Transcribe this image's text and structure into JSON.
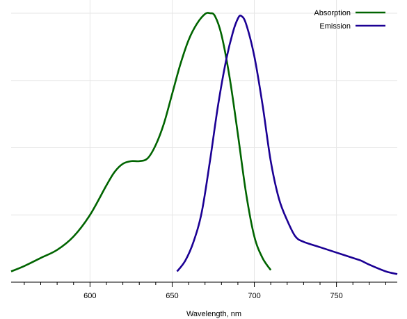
{
  "chart_data": {
    "type": "line",
    "title": "",
    "xlabel": "Wavelength, nm",
    "ylabel": "",
    "xlim": [
      552,
      787
    ],
    "ylim": [
      0,
      1.0
    ],
    "x_ticks": [
      600,
      650,
      700,
      750
    ],
    "x_tick_labels": [
      "600",
      "650",
      "700",
      "750"
    ],
    "grid": "vertical and horizontal",
    "legend_position": "top-right",
    "series": [
      {
        "name": "Absorption",
        "color": "#006400",
        "points": [
          [
            552,
            0.04
          ],
          [
            560,
            0.06
          ],
          [
            570,
            0.09
          ],
          [
            580,
            0.12
          ],
          [
            590,
            0.17
          ],
          [
            600,
            0.25
          ],
          [
            610,
            0.36
          ],
          [
            615,
            0.41
          ],
          [
            620,
            0.44
          ],
          [
            625,
            0.45
          ],
          [
            630,
            0.45
          ],
          [
            635,
            0.46
          ],
          [
            640,
            0.51
          ],
          [
            645,
            0.59
          ],
          [
            650,
            0.7
          ],
          [
            655,
            0.81
          ],
          [
            660,
            0.9
          ],
          [
            665,
            0.96
          ],
          [
            670,
            0.997
          ],
          [
            673,
            1.0
          ],
          [
            676,
            0.99
          ],
          [
            680,
            0.92
          ],
          [
            685,
            0.76
          ],
          [
            690,
            0.55
          ],
          [
            695,
            0.33
          ],
          [
            700,
            0.17
          ],
          [
            705,
            0.09
          ],
          [
            710,
            0.045
          ]
        ]
      },
      {
        "name": "Emission",
        "color": "#1b0094",
        "points": [
          [
            653,
            0.04
          ],
          [
            658,
            0.08
          ],
          [
            663,
            0.15
          ],
          [
            668,
            0.26
          ],
          [
            673,
            0.45
          ],
          [
            678,
            0.66
          ],
          [
            683,
            0.83
          ],
          [
            687,
            0.93
          ],
          [
            690,
            0.98
          ],
          [
            692,
            0.99
          ],
          [
            695,
            0.96
          ],
          [
            700,
            0.84
          ],
          [
            705,
            0.66
          ],
          [
            710,
            0.45
          ],
          [
            715,
            0.31
          ],
          [
            720,
            0.23
          ],
          [
            725,
            0.17
          ],
          [
            730,
            0.15
          ],
          [
            740,
            0.13
          ],
          [
            750,
            0.11
          ],
          [
            760,
            0.09
          ],
          [
            765,
            0.08
          ],
          [
            770,
            0.065
          ],
          [
            780,
            0.04
          ],
          [
            787,
            0.03
          ]
        ]
      }
    ]
  }
}
